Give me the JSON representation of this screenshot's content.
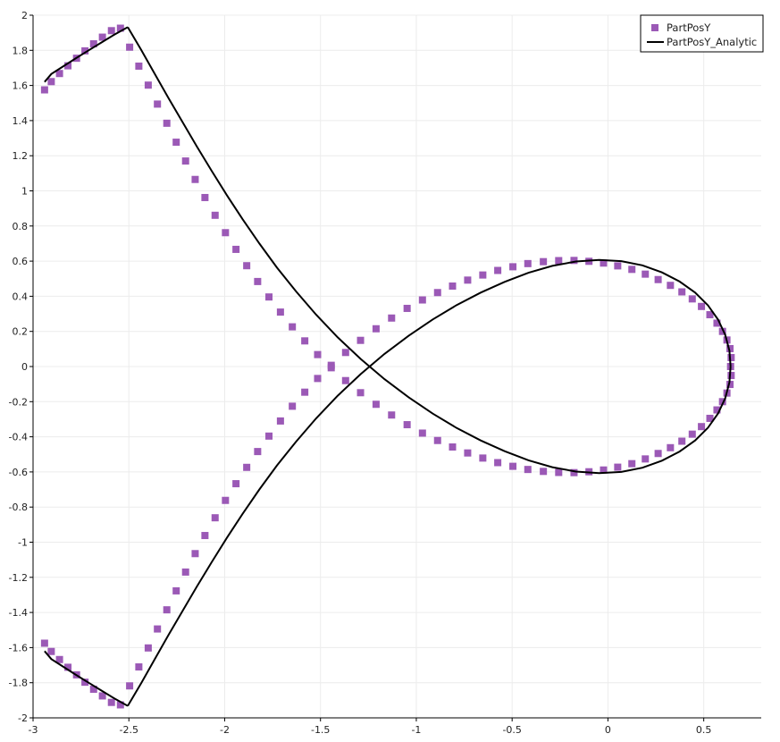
{
  "chart_data": {
    "type": "scatter",
    "title": "",
    "xlabel": "",
    "ylabel": "",
    "xlim": [
      -3,
      0.8
    ],
    "ylim": [
      -2,
      2
    ],
    "x_ticks": [
      -3,
      -2.5,
      -2,
      -1.5,
      -1,
      -0.5,
      0,
      0.5
    ],
    "x_tick_labels": [
      "-3",
      "-2.5",
      "-2",
      "-1.5",
      "-1",
      "-0.5",
      "0",
      "0.5"
    ],
    "y_ticks": [
      2,
      1.8,
      1.6,
      1.4,
      1.2,
      1,
      0.8,
      0.6,
      0.4,
      0.2,
      0,
      -0.2,
      -0.4,
      -0.6,
      -0.8,
      -1,
      -1.2,
      -1.4,
      -1.6,
      -1.8,
      -2
    ],
    "y_tick_labels": [
      "2",
      "1.8",
      "1.6",
      "1.4",
      "1.2",
      "1",
      "0.8",
      "0.6",
      "0.4",
      "0.2",
      "0",
      "-0.2",
      "-0.4",
      "-0.6",
      "-0.8",
      "-1",
      "-1.2",
      "-1.4",
      "-1.6",
      "-1.8",
      "-2"
    ],
    "grid": true,
    "legend_position": "top-right",
    "series": [
      {
        "name": "PartPosY",
        "style": "markers",
        "marker": "square",
        "color": "#9b59b6",
        "x": [
          0.64,
          0.643,
          0.637,
          0.621,
          0.598,
          0.569,
          0.532,
          0.488,
          0.44,
          0.386,
          0.326,
          0.262,
          0.195,
          0.125,
          0.051,
          -0.023,
          -0.099,
          -0.177,
          -0.257,
          -0.337,
          -0.418,
          -0.496,
          -0.575,
          -0.653,
          -0.732,
          -0.811,
          -0.889,
          -0.968,
          -1.048,
          -1.129,
          -1.21,
          -1.291,
          -1.369,
          -1.444,
          -1.515,
          -1.582,
          -1.647,
          -1.709,
          -1.769,
          -1.828,
          -1.885,
          -1.941,
          -1.996,
          -2.05,
          -2.103,
          -2.154,
          -2.204,
          -2.253,
          -2.302,
          -2.351,
          -2.399,
          -2.448,
          -2.496,
          -2.544,
          -2.591,
          -2.638,
          -2.684,
          -2.729,
          -2.773,
          -2.818,
          -2.862,
          -2.905,
          -2.94,
          -2.94,
          -2.905,
          -2.862,
          -2.818,
          -2.773,
          -2.729,
          -2.684,
          -2.638,
          -2.591,
          -2.544,
          -2.496,
          -2.448,
          -2.399,
          -2.351,
          -2.302,
          -2.253,
          -2.204,
          -2.154,
          -2.103,
          -2.05,
          -1.996,
          -1.941,
          -1.885,
          -1.828,
          -1.769,
          -1.709,
          -1.647,
          -1.582,
          -1.515,
          -1.444,
          -1.369,
          -1.291,
          -1.21,
          -1.129,
          -1.048,
          -0.968,
          -0.889,
          -0.811,
          -0.732,
          -0.653,
          -0.575,
          -0.496,
          -0.418,
          -0.337,
          -0.257,
          -0.177,
          -0.099,
          -0.023,
          0.051,
          0.125,
          0.195,
          0.262,
          0.326,
          0.386,
          0.44,
          0.488,
          0.532,
          0.569,
          0.598,
          0.621,
          0.637,
          0.643
        ],
        "y": [
          0.0,
          0.051,
          0.102,
          0.151,
          0.2,
          0.247,
          0.295,
          0.342,
          0.385,
          0.425,
          0.462,
          0.495,
          0.526,
          0.553,
          0.573,
          0.589,
          0.599,
          0.604,
          0.603,
          0.597,
          0.586,
          0.568,
          0.547,
          0.521,
          0.492,
          0.458,
          0.421,
          0.379,
          0.331,
          0.276,
          0.215,
          0.149,
          0.08,
          0.007,
          -0.068,
          -0.146,
          -0.226,
          -0.31,
          -0.396,
          -0.484,
          -0.574,
          -0.667,
          -0.762,
          -0.861,
          -0.962,
          -1.065,
          -1.17,
          -1.277,
          -1.385,
          -1.494,
          -1.602,
          -1.71,
          -1.818,
          -1.926,
          -1.912,
          -1.875,
          -1.837,
          -1.797,
          -1.755,
          -1.712,
          -1.668,
          -1.622,
          -1.575,
          1.575,
          1.622,
          1.668,
          1.712,
          1.755,
          1.797,
          1.837,
          1.875,
          1.912,
          1.926,
          1.818,
          1.71,
          1.602,
          1.494,
          1.385,
          1.277,
          1.17,
          1.065,
          0.962,
          0.861,
          0.762,
          0.667,
          0.574,
          0.484,
          0.396,
          0.31,
          0.226,
          0.146,
          0.068,
          -0.007,
          -0.08,
          -0.149,
          -0.215,
          -0.276,
          -0.331,
          -0.379,
          -0.421,
          -0.458,
          -0.492,
          -0.521,
          -0.547,
          -0.568,
          -0.586,
          -0.597,
          -0.603,
          -0.604,
          -0.599,
          -0.589,
          -0.573,
          -0.553,
          -0.526,
          -0.495,
          -0.462,
          -0.425,
          -0.385,
          -0.342,
          -0.295,
          -0.247,
          -0.2,
          -0.151,
          -0.102,
          -0.051
        ]
      },
      {
        "name": "PartPosY_Analytic",
        "style": "line",
        "color": "#000000",
        "x": [
          0.64,
          0.634,
          0.612,
          0.575,
          0.522,
          0.455,
          0.374,
          0.282,
          0.18,
          0.07,
          -0.046,
          -0.167,
          -0.29,
          -0.414,
          -0.539,
          -0.664,
          -0.789,
          -0.914,
          -1.04,
          -1.166,
          -1.29,
          -1.41,
          -1.523,
          -1.628,
          -1.727,
          -1.819,
          -1.906,
          -1.989,
          -2.068,
          -2.145,
          -2.219,
          -2.293,
          -2.365,
          -2.436,
          -2.506,
          -2.575,
          -2.643,
          -2.71,
          -2.776,
          -2.841,
          -2.905,
          -2.94
        ],
        "y": [
          0.0,
          0.09,
          0.18,
          0.267,
          0.348,
          0.421,
          0.484,
          0.536,
          0.576,
          0.6,
          0.607,
          0.598,
          0.573,
          0.534,
          0.482,
          0.421,
          0.35,
          0.268,
          0.175,
          0.072,
          -0.043,
          -0.166,
          -0.295,
          -0.428,
          -0.563,
          -0.7,
          -0.838,
          -0.976,
          -1.114,
          -1.252,
          -1.39,
          -1.528,
          -1.666,
          -1.803,
          -1.932,
          -1.89,
          -1.845,
          -1.8,
          -1.755,
          -1.71,
          -1.665,
          -1.62
        ]
      }
    ]
  }
}
